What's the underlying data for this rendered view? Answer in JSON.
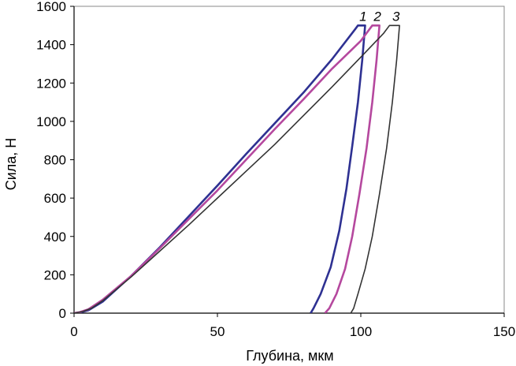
{
  "chart_data": {
    "type": "line",
    "title": "",
    "xlabel": "Глубина, мкм",
    "ylabel": "Сила, Н",
    "xlim": [
      0,
      150
    ],
    "ylim": [
      0,
      1600
    ],
    "x_ticks": [
      "0",
      "50",
      "100",
      "150"
    ],
    "y_ticks": [
      "0",
      "200",
      "400",
      "600",
      "800",
      "1000",
      "1200",
      "1400",
      "1600"
    ],
    "grid": false,
    "legend": "none",
    "series": [
      {
        "name": "1",
        "color": "#2e3192",
        "loading": [
          [
            0,
            0
          ],
          [
            2,
            3
          ],
          [
            5,
            15
          ],
          [
            10,
            60
          ],
          [
            20,
            195
          ],
          [
            30,
            345
          ],
          [
            40,
            505
          ],
          [
            50,
            665
          ],
          [
            60,
            830
          ],
          [
            70,
            990
          ],
          [
            80,
            1150
          ],
          [
            90,
            1325
          ],
          [
            98,
            1480
          ],
          [
            99,
            1500
          ]
        ],
        "hold": [
          [
            99,
            1500
          ],
          [
            101.5,
            1500
          ]
        ],
        "unloading": [
          [
            101.5,
            1500
          ],
          [
            100.5,
            1320
          ],
          [
            99,
            1100
          ],
          [
            97,
            870
          ],
          [
            95,
            650
          ],
          [
            92.5,
            430
          ],
          [
            89.5,
            240
          ],
          [
            86,
            100
          ],
          [
            83.5,
            25
          ],
          [
            82.5,
            0
          ]
        ]
      },
      {
        "name": "2",
        "color": "#b5489e",
        "loading": [
          [
            0,
            0
          ],
          [
            2,
            5
          ],
          [
            5,
            20
          ],
          [
            10,
            70
          ],
          [
            20,
            195
          ],
          [
            30,
            340
          ],
          [
            40,
            490
          ],
          [
            50,
            640
          ],
          [
            60,
            800
          ],
          [
            70,
            960
          ],
          [
            80,
            1115
          ],
          [
            90,
            1275
          ],
          [
            100,
            1420
          ],
          [
            104,
            1500
          ]
        ],
        "hold": [
          [
            104,
            1500
          ],
          [
            106.5,
            1500
          ]
        ],
        "unloading": [
          [
            106.5,
            1500
          ],
          [
            105.5,
            1320
          ],
          [
            104,
            1100
          ],
          [
            102,
            860
          ],
          [
            99.5,
            620
          ],
          [
            97,
            400
          ],
          [
            94.5,
            230
          ],
          [
            91.5,
            100
          ],
          [
            89,
            25
          ],
          [
            87.5,
            0
          ]
        ]
      },
      {
        "name": "3",
        "color": "#333333",
        "loading": [
          [
            0,
            0
          ],
          [
            3,
            8
          ],
          [
            6,
            25
          ],
          [
            10,
            65
          ],
          [
            20,
            190
          ],
          [
            30,
            325
          ],
          [
            40,
            460
          ],
          [
            50,
            600
          ],
          [
            60,
            740
          ],
          [
            70,
            880
          ],
          [
            80,
            1030
          ],
          [
            90,
            1180
          ],
          [
            100,
            1335
          ],
          [
            108,
            1460
          ],
          [
            110,
            1500
          ]
        ],
        "hold": [
          [
            110,
            1500
          ],
          [
            113.5,
            1500
          ]
        ],
        "unloading": [
          [
            113.5,
            1500
          ],
          [
            112.5,
            1320
          ],
          [
            111,
            1100
          ],
          [
            109,
            860
          ],
          [
            106.5,
            620
          ],
          [
            104,
            400
          ],
          [
            101.5,
            230
          ],
          [
            99,
            100
          ],
          [
            97.5,
            25
          ],
          [
            96.5,
            0
          ]
        ]
      }
    ]
  }
}
